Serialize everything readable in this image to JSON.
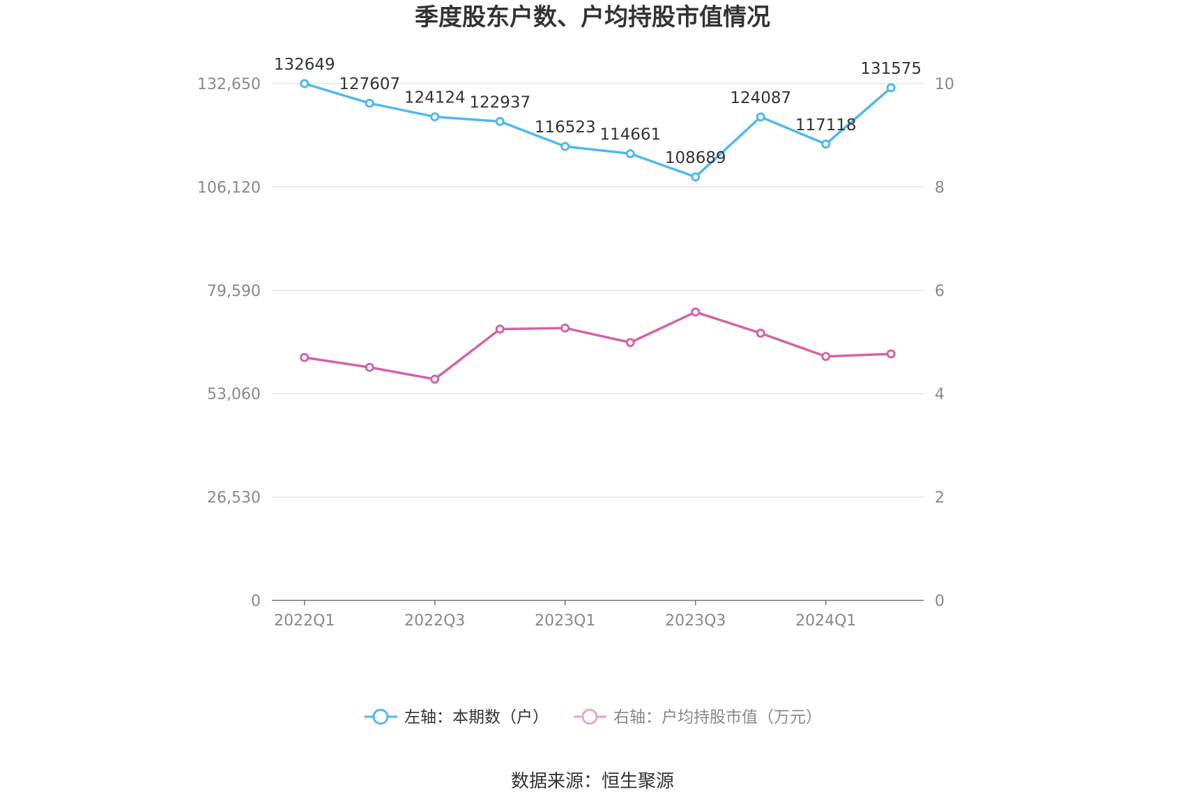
{
  "chart_data": {
    "type": "line",
    "title": "季度股东户数、户均持股市值情况",
    "categories": [
      "2022Q1",
      "2022Q2",
      "2022Q3",
      "2022Q4",
      "2023Q1",
      "2023Q2",
      "2023Q3",
      "2023Q4",
      "2024Q1",
      "2024Q2"
    ],
    "x_tick_labels": [
      "2022Q1",
      "2022Q3",
      "2023Q1",
      "2023Q3",
      "2024Q1"
    ],
    "left_axis": {
      "ticks": [
        "0",
        "26,530",
        "53,060",
        "79,590",
        "106,120",
        "132,650"
      ],
      "ylim": [
        0,
        132650
      ]
    },
    "right_axis": {
      "ticks": [
        "0",
        "2",
        "4",
        "6",
        "8",
        "10"
      ],
      "ylim": [
        0,
        10
      ]
    },
    "series": [
      {
        "name": "左轴：本期数（户）",
        "axis": "left",
        "color": "#4fb8ec",
        "values": [
          132649,
          127607,
          124124,
          122937,
          116523,
          114661,
          108689,
          124087,
          117118,
          131575
        ],
        "labels": [
          "132649",
          "127607",
          "124124",
          "122937",
          "116523",
          "114661",
          "108689",
          "124087",
          "117118",
          "131575"
        ]
      },
      {
        "name": "右轴：户均持股市值（万元）",
        "axis": "right",
        "color": "#d462a8",
        "values": [
          4.7,
          4.51,
          4.28,
          5.25,
          5.27,
          4.99,
          5.58,
          5.17,
          4.72,
          4.77
        ]
      }
    ],
    "grid": true,
    "legend_position": "bottom",
    "source": "数据来源：恒生聚源"
  }
}
